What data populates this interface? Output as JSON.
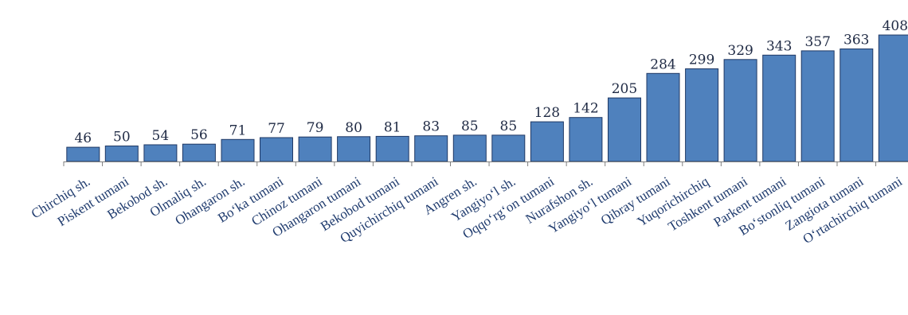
{
  "chart_data": {
    "type": "bar",
    "categories": [
      "Chirchiq sh.",
      "Piskent tumani",
      "Bekobod sh.",
      "Olmaliq sh.",
      "Ohangaron sh.",
      "Bo‘ka tumani",
      "Chinoz tumani",
      "Ohangaron tumani",
      "Bekobod tumani",
      "Quyichirchiq tumani",
      "Angren sh.",
      "Yangiyo‘l sh.",
      "Oqqo‘rg‘on tumani",
      "Nurafshon sh.",
      "Yangiyo‘l tumani",
      "Qibray tumani",
      "Yuqorichirchiq ",
      "Toshkent tumani",
      "Parkent tumani",
      "Bo‘stonliq tumani",
      "Zangiota tumani",
      "O‘rtachirchiq tumani"
    ],
    "values": [
      46,
      50,
      54,
      56,
      71,
      77,
      79,
      80,
      81,
      83,
      85,
      85,
      128,
      142,
      205,
      284,
      299,
      329,
      343,
      357,
      363,
      408
    ],
    "data_labels": [
      "46",
      "50",
      "54",
      "56",
      "71",
      "77",
      "79",
      "80",
      "81",
      "83",
      "85",
      "85",
      "128",
      "142",
      "205",
      "284",
      "299",
      "329",
      "343",
      "357",
      "363",
      "408"
    ],
    "title": "",
    "xlabel": "",
    "ylabel": "",
    "ylim": [
      0,
      408
    ],
    "grid": false,
    "legend": "none",
    "bar_color": "#4f81bd",
    "bar_edge_color": "#1f3864",
    "label_color": "#1f3b6e"
  }
}
